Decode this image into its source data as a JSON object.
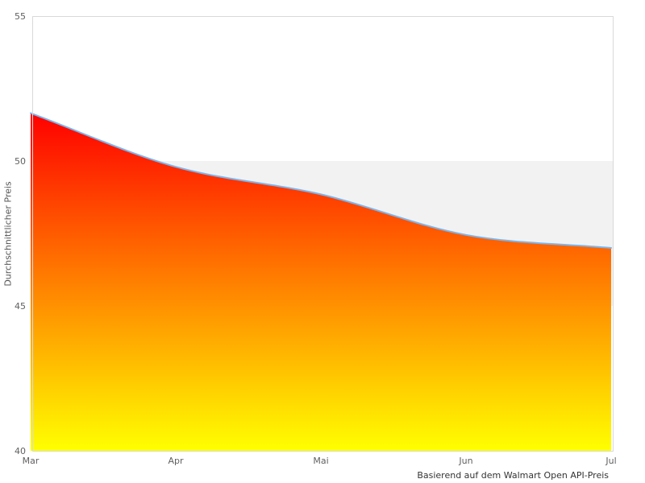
{
  "chart_data": {
    "type": "area",
    "categories": [
      "Mar",
      "Apr",
      "Mai",
      "Jun",
      "Jul"
    ],
    "values": [
      51.65,
      49.8,
      48.85,
      47.45,
      47.0
    ],
    "series_name": "Durchschnittlicher Preis",
    "title": "",
    "xlabel": "Basierend auf dem Walmart Open API-Preis",
    "ylabel": "Durchschnittlicher Preis",
    "ylim": [
      40,
      55
    ],
    "yticks": [
      40,
      45,
      50,
      55
    ],
    "grid": false,
    "legend": false,
    "plot_band": {
      "from": 45,
      "to": 50,
      "color": "#f2f2f2"
    },
    "line_color": "#7cb5ec",
    "fill_gradient_top": "#ff0000",
    "fill_gradient_bottom": "#ffff00",
    "border_color": "#d9d9d9",
    "tick_label_color": "#606060",
    "caption_color": "#333333"
  }
}
